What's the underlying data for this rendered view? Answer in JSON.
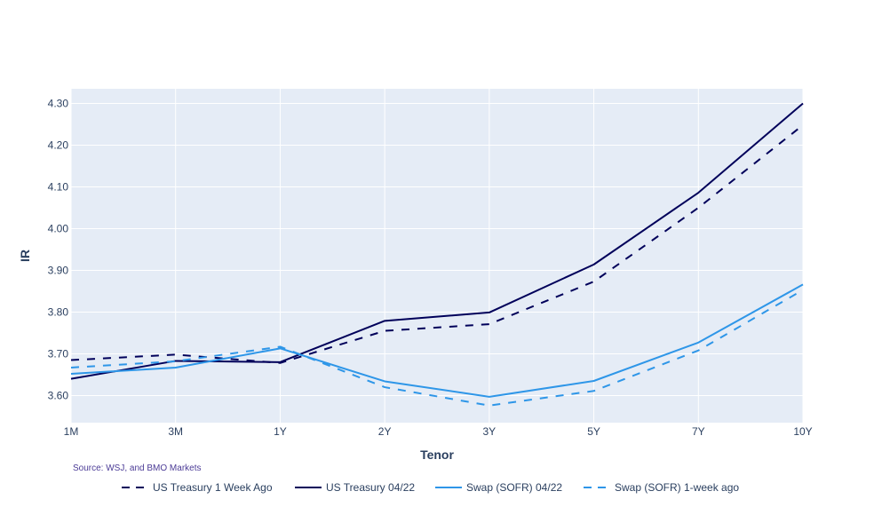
{
  "chart_data": {
    "type": "line",
    "title": "",
    "xlabel": "Tenor",
    "ylabel": "IR",
    "categories": [
      "1M",
      "3M",
      "1Y",
      "2Y",
      "3Y",
      "5Y",
      "7Y",
      "10Y"
    ],
    "ylim": [
      3.535,
      4.335
    ],
    "yticks": [
      3.6,
      3.7,
      3.8,
      3.9,
      4.0,
      4.1,
      4.2,
      4.3
    ],
    "ytick_labels": [
      "3.60",
      "3.70",
      "3.80",
      "3.90",
      "4.00",
      "4.10",
      "4.20",
      "4.30"
    ],
    "grid": true,
    "legend_position": "bottom",
    "series": [
      {
        "name": "US Treasury 1 Week Ago",
        "color": "#00005a",
        "dash": "dash",
        "values": [
          3.685,
          3.698,
          3.678,
          3.755,
          3.771,
          3.873,
          4.05,
          4.248
        ]
      },
      {
        "name": "US Treasury 04/22",
        "color": "#00005a",
        "dash": "solid",
        "values": [
          3.64,
          3.683,
          3.68,
          3.779,
          3.799,
          3.914,
          4.086,
          4.3
        ]
      },
      {
        "name": "Swap (SOFR) 04/22",
        "color": "#2e96e8",
        "dash": "solid",
        "values": [
          3.652,
          3.667,
          3.713,
          3.634,
          3.597,
          3.635,
          3.727,
          3.866
        ]
      },
      {
        "name": "Swap (SOFR) 1-week ago",
        "color": "#2e96e8",
        "dash": "dash",
        "values": [
          3.667,
          3.682,
          3.717,
          3.62,
          3.576,
          3.611,
          3.708,
          3.853
        ]
      }
    ],
    "annotation": "Source: WSJ, and BMO Markets"
  },
  "colors": {
    "plot_bg": "#e5ecf6",
    "grid": "#ffffff",
    "axis_text": "#2a3f5f",
    "annotation": "#4b3b96"
  }
}
